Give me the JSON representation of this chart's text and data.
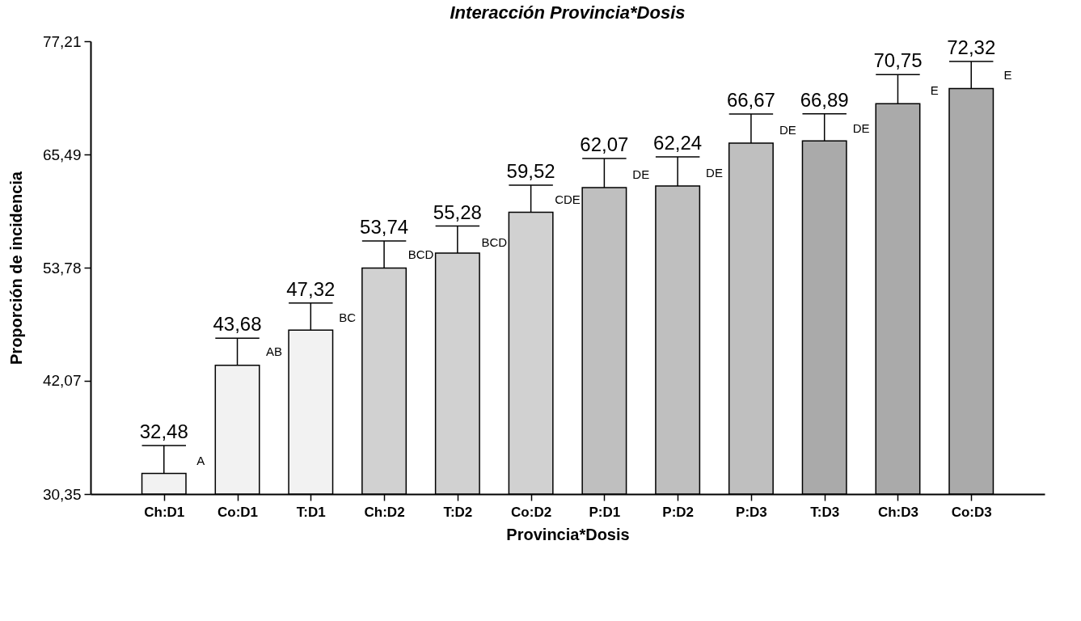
{
  "chart_data": {
    "type": "bar",
    "title": "Interacción Provincia*Dosis",
    "xlabel": "Provincia*Dosis",
    "ylabel": "Proporción de incidencia",
    "categories": [
      "Ch:D1",
      "Co:D1",
      "T:D1",
      "Ch:D2",
      "T:D2",
      "Co:D2",
      "P:D1",
      "P:D2",
      "P:D3",
      "T:D3",
      "Ch:D3",
      "Co:D3"
    ],
    "values": [
      32.48,
      43.68,
      47.32,
      53.74,
      55.28,
      59.52,
      62.07,
      62.24,
      66.67,
      66.89,
      70.75,
      72.32
    ],
    "value_labels": [
      "32,48",
      "43,68",
      "47,32",
      "53,74",
      "55,28",
      "59,52",
      "62,07",
      "62,24",
      "66,67",
      "66,89",
      "70,75",
      "72,32"
    ],
    "errors": [
      2.9,
      2.8,
      2.8,
      2.8,
      2.8,
      2.8,
      3.0,
      3.0,
      3.0,
      2.8,
      3.0,
      2.8
    ],
    "colors": [
      "#f2f2f2",
      "#f2f2f2",
      "#f2f2f2",
      "#d1d1d1",
      "#d1d1d1",
      "#d1d1d1",
      "#bfbfbf",
      "#bfbfbf",
      "#bfbfbf",
      "#aaaaaa",
      "#aaaaaa",
      "#aaaaaa"
    ],
    "ylim": [
      30.35,
      77.21
    ],
    "yticks": [
      {
        "value": 30.35,
        "label": "30,35"
      },
      {
        "value": 42.07,
        "label": "42,07"
      },
      {
        "value": 53.78,
        "label": "53,78"
      },
      {
        "value": 65.49,
        "label": "65,49"
      },
      {
        "value": 77.21,
        "label": "77,21"
      }
    ],
    "grid": false,
    "annotations": [
      {
        "text": "A",
        "x": "Ch:D1",
        "y": 33.8
      },
      {
        "text": "AB",
        "x": "Co:D1",
        "y": 45.1
      },
      {
        "text": "BC",
        "x": "T:D1",
        "y": 48.6
      },
      {
        "text": "BCD",
        "x": "Ch:D2",
        "y": 55.1
      },
      {
        "text": "BCD",
        "x": "T:D2",
        "y": 56.4
      },
      {
        "text": "CDE",
        "x": "Co:D2",
        "y": 60.8
      },
      {
        "text": "DE",
        "x": "P:D1",
        "y": 63.4
      },
      {
        "text": "DE",
        "x": "P:D2",
        "y": 63.6
      },
      {
        "text": "DE",
        "x": "P:D3",
        "y": 68.0
      },
      {
        "text": "DE",
        "x": "T:D3",
        "y": 68.2
      },
      {
        "text": "E",
        "x": "Ch:D3",
        "y": 72.1
      },
      {
        "text": "E",
        "x": "Co:D3",
        "y": 73.7
      }
    ]
  }
}
